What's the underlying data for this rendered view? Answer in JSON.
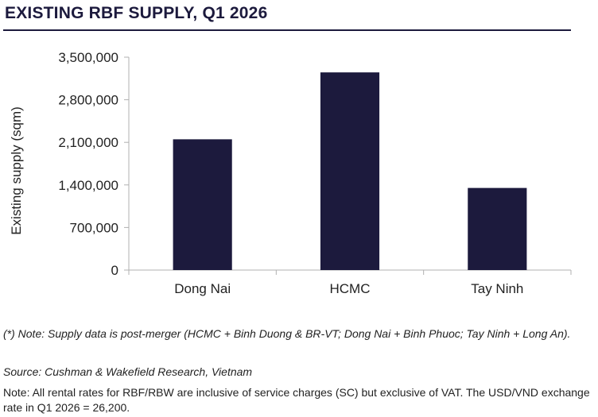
{
  "title": "EXISTING RBF SUPPLY, Q1 2026",
  "colors": {
    "bar": "#1c1a3d",
    "axis": "#b0b0b0",
    "title": "#1c1a3d"
  },
  "chart_data": {
    "type": "bar",
    "categories": [
      "Dong Nai",
      "HCMC",
      "Tay Ninh"
    ],
    "values": [
      2150000,
      3250000,
      1350000
    ],
    "ylabel": "Existing supply (sqm)",
    "xlabel": "",
    "ylim": [
      0,
      3500000
    ],
    "yticks": [
      0,
      700000,
      1400000,
      2100000,
      2800000,
      3500000
    ],
    "ytick_labels": [
      "0",
      "700,000",
      "1,400,000",
      "2,100,000",
      "2,800,000",
      "3,500,000"
    ],
    "grid": false,
    "legend": "none"
  },
  "notes": {
    "merger": "(*) Note: Supply data is post-merger (HCMC + Binh Duong & BR-VT; Dong Nai + Binh Phuoc; Tay Ninh + Long An).",
    "source": "Source: Cushman & Wakefield Research, Vietnam",
    "rates": "Note: All rental rates for RBF/RBW are inclusive of service charges (SC) but exclusive of VAT. The USD/VND exchange rate in Q1 2026 = 26,200."
  }
}
